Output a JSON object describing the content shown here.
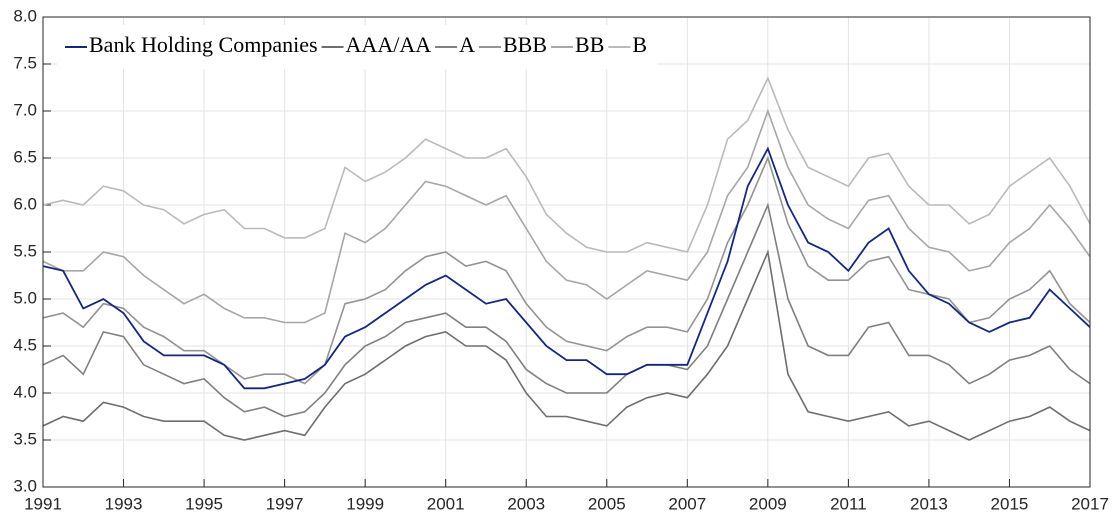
{
  "chart_data": {
    "type": "line",
    "x": [
      1991,
      1991.5,
      1992,
      1992.5,
      1993,
      1993.5,
      1994,
      1994.5,
      1995,
      1995.5,
      1996,
      1996.5,
      1997,
      1997.5,
      1998,
      1998.5,
      1999,
      1999.5,
      2000,
      2000.5,
      2001,
      2001.5,
      2002,
      2002.5,
      2003,
      2003.5,
      2004,
      2004.5,
      2005,
      2005.5,
      2006,
      2006.5,
      2007,
      2007.5,
      2008,
      2008.5,
      2009,
      2009.5,
      2010,
      2010.5,
      2011,
      2011.5,
      2012,
      2012.5,
      2013,
      2013.5,
      2014,
      2014.5,
      2015,
      2015.5,
      2016,
      2016.5,
      2017
    ],
    "series": [
      {
        "name": "Bank Holding Companies",
        "color": "#14287a",
        "values": [
          5.35,
          5.3,
          4.9,
          5.0,
          4.85,
          4.55,
          4.4,
          4.4,
          4.4,
          4.3,
          4.05,
          4.05,
          4.1,
          4.15,
          4.3,
          4.6,
          4.7,
          4.85,
          5.0,
          5.15,
          5.25,
          5.1,
          4.95,
          5.0,
          4.75,
          4.5,
          4.35,
          4.35,
          4.2,
          4.2,
          4.3,
          4.3,
          4.3,
          4.85,
          5.4,
          6.2,
          6.6,
          6.0,
          5.6,
          5.5,
          5.3,
          5.6,
          5.75,
          5.3,
          5.05,
          4.95,
          4.75,
          4.65,
          4.75,
          4.8,
          5.1,
          4.9,
          4.7
        ]
      },
      {
        "name": "AAA/AA",
        "color": "#6e6e6e",
        "values": [
          3.65,
          3.75,
          3.7,
          3.9,
          3.85,
          3.75,
          3.7,
          3.7,
          3.7,
          3.55,
          3.5,
          3.55,
          3.6,
          3.55,
          3.85,
          4.1,
          4.2,
          4.35,
          4.5,
          4.6,
          4.65,
          4.5,
          4.5,
          4.35,
          4.0,
          3.75,
          3.75,
          3.7,
          3.65,
          3.85,
          3.95,
          4.0,
          3.95,
          4.2,
          4.5,
          5.0,
          5.5,
          4.2,
          3.8,
          3.75,
          3.7,
          3.75,
          3.8,
          3.65,
          3.7,
          3.6,
          3.5,
          3.6,
          3.7,
          3.75,
          3.85,
          3.7,
          3.6
        ]
      },
      {
        "name": "A",
        "color": "#7f7f7f",
        "values": [
          4.3,
          4.4,
          4.2,
          4.65,
          4.6,
          4.3,
          4.2,
          4.1,
          4.15,
          3.95,
          3.8,
          3.85,
          3.75,
          3.8,
          4.0,
          4.3,
          4.5,
          4.6,
          4.75,
          4.8,
          4.85,
          4.7,
          4.7,
          4.55,
          4.25,
          4.1,
          4.0,
          4.0,
          4.0,
          4.2,
          4.3,
          4.3,
          4.25,
          4.5,
          5.0,
          5.5,
          6.0,
          5.0,
          4.5,
          4.4,
          4.4,
          4.7,
          4.75,
          4.4,
          4.4,
          4.3,
          4.1,
          4.2,
          4.35,
          4.4,
          4.5,
          4.25,
          4.1
        ]
      },
      {
        "name": "BBB",
        "color": "#939393",
        "values": [
          4.8,
          4.85,
          4.7,
          4.95,
          4.9,
          4.7,
          4.6,
          4.45,
          4.45,
          4.3,
          4.15,
          4.2,
          4.2,
          4.1,
          4.3,
          4.95,
          5.0,
          5.1,
          5.3,
          5.45,
          5.5,
          5.35,
          5.4,
          5.3,
          4.95,
          4.7,
          4.55,
          4.5,
          4.45,
          4.6,
          4.7,
          4.7,
          4.65,
          5.0,
          5.6,
          6.0,
          6.5,
          5.8,
          5.35,
          5.2,
          5.2,
          5.4,
          5.45,
          5.1,
          5.05,
          5.0,
          4.75,
          4.8,
          5.0,
          5.1,
          5.3,
          4.95,
          4.75
        ]
      },
      {
        "name": "BB",
        "color": "#a6a6a6",
        "values": [
          5.4,
          5.3,
          5.3,
          5.5,
          5.45,
          5.25,
          5.1,
          4.95,
          5.05,
          4.9,
          4.8,
          4.8,
          4.75,
          4.75,
          4.85,
          5.7,
          5.6,
          5.75,
          6.0,
          6.25,
          6.2,
          6.1,
          6.0,
          6.1,
          5.75,
          5.4,
          5.2,
          5.15,
          5.0,
          5.15,
          5.3,
          5.25,
          5.2,
          5.5,
          6.1,
          6.4,
          7.0,
          6.4,
          6.0,
          5.85,
          5.75,
          6.05,
          6.1,
          5.75,
          5.55,
          5.5,
          5.3,
          5.35,
          5.6,
          5.75,
          6.0,
          5.75,
          5.45
        ]
      },
      {
        "name": "B",
        "color": "#bababa",
        "values": [
          6.0,
          6.05,
          6.0,
          6.2,
          6.15,
          6.0,
          5.95,
          5.8,
          5.9,
          5.95,
          5.75,
          5.75,
          5.65,
          5.65,
          5.75,
          6.4,
          6.25,
          6.35,
          6.5,
          6.7,
          6.6,
          6.5,
          6.5,
          6.6,
          6.3,
          5.9,
          5.7,
          5.55,
          5.5,
          5.5,
          5.6,
          5.55,
          5.5,
          6.0,
          6.7,
          6.9,
          7.35,
          6.8,
          6.4,
          6.3,
          6.2,
          6.5,
          6.55,
          6.2,
          6.0,
          6.0,
          5.8,
          5.9,
          6.2,
          6.35,
          6.5,
          6.2,
          5.8
        ]
      }
    ],
    "xlim": [
      1991,
      2017
    ],
    "xticks": [
      1991,
      1993,
      1995,
      1997,
      1999,
      2001,
      2003,
      2005,
      2007,
      2009,
      2011,
      2013,
      2015,
      2017
    ],
    "ylim": [
      3,
      8
    ],
    "yticks": [
      {
        "value": 3,
        "label": "3.0"
      },
      3.5,
      {
        "value": 4,
        "label": "4.0"
      },
      4.5,
      {
        "value": 5,
        "label": "5.0"
      },
      5.5,
      {
        "value": 6,
        "label": "6.0"
      },
      6.5,
      {
        "value": 7,
        "label": "7.0"
      },
      7.5,
      {
        "value": 8,
        "label": "8.0"
      }
    ],
    "grid": true,
    "legend": "upper-left"
  }
}
